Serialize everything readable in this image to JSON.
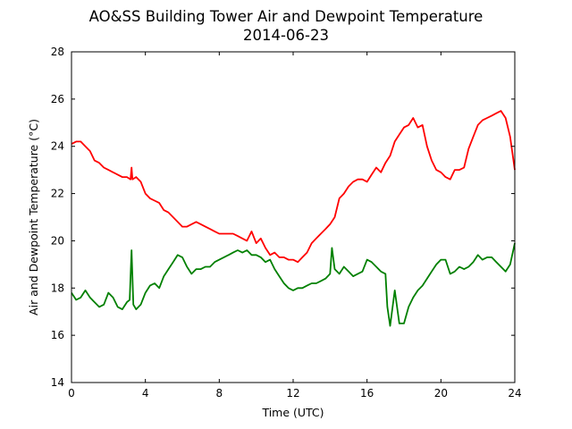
{
  "chart_data": {
    "type": "line",
    "title": "AO&SS Building Tower Air and Dewpoint Temperature",
    "subtitle": "2014-06-23",
    "xlabel": "Time (UTC)",
    "ylabel": "Air and Dewpoint Temperature (°C)",
    "xlim": [
      0,
      24
    ],
    "ylim": [
      14,
      28
    ],
    "xticks": [
      0,
      4,
      8,
      12,
      16,
      20,
      24
    ],
    "yticks": [
      14,
      16,
      18,
      20,
      22,
      24,
      26,
      28
    ],
    "grid": false,
    "legend": "none",
    "series": [
      {
        "color": "#ff0000",
        "x": [
          0,
          0.25,
          0.5,
          0.75,
          1.0,
          1.25,
          1.5,
          1.75,
          2.0,
          2.25,
          2.5,
          2.75,
          3.0,
          3.2,
          3.25,
          3.3,
          3.5,
          3.75,
          4.0,
          4.25,
          4.5,
          4.75,
          5.0,
          5.25,
          5.5,
          5.75,
          6.0,
          6.25,
          6.5,
          6.75,
          7.0,
          7.25,
          7.5,
          7.75,
          8.0,
          8.25,
          8.5,
          8.75,
          9.0,
          9.25,
          9.5,
          9.75,
          10.0,
          10.25,
          10.5,
          10.75,
          11.0,
          11.25,
          11.5,
          11.75,
          12.0,
          12.25,
          12.5,
          12.75,
          13.0,
          13.25,
          13.5,
          13.75,
          14.0,
          14.25,
          14.5,
          14.75,
          15.0,
          15.25,
          15.5,
          15.75,
          16.0,
          16.25,
          16.5,
          16.75,
          17.0,
          17.25,
          17.5,
          17.75,
          18.0,
          18.25,
          18.5,
          18.75,
          19.0,
          19.25,
          19.5,
          19.75,
          20.0,
          20.25,
          20.5,
          20.75,
          21.0,
          21.25,
          21.5,
          21.75,
          22.0,
          22.25,
          22.5,
          22.75,
          23.0,
          23.25,
          23.5,
          23.75,
          24.0
        ],
        "values": [
          24.1,
          24.2,
          24.2,
          24.0,
          23.8,
          23.4,
          23.3,
          23.1,
          23.0,
          22.9,
          22.8,
          22.7,
          22.7,
          22.6,
          23.1,
          22.6,
          22.7,
          22.5,
          22.0,
          21.8,
          21.7,
          21.6,
          21.3,
          21.2,
          21.0,
          20.8,
          20.6,
          20.6,
          20.7,
          20.8,
          20.7,
          20.6,
          20.5,
          20.4,
          20.3,
          20.3,
          20.3,
          20.3,
          20.2,
          20.1,
          20.0,
          20.4,
          19.9,
          20.1,
          19.7,
          19.4,
          19.5,
          19.3,
          19.3,
          19.2,
          19.2,
          19.1,
          19.3,
          19.5,
          19.9,
          20.1,
          20.3,
          20.5,
          20.7,
          21.0,
          21.8,
          22.0,
          22.3,
          22.5,
          22.6,
          22.6,
          22.5,
          22.8,
          23.1,
          22.9,
          23.3,
          23.6,
          24.2,
          24.5,
          24.8,
          24.9,
          25.2,
          24.8,
          24.9,
          24.0,
          23.4,
          23.0,
          22.9,
          22.7,
          22.6,
          23.0,
          23.0,
          23.1,
          23.9,
          24.4,
          24.9,
          25.1,
          25.2,
          25.3,
          25.4,
          25.5,
          25.2,
          24.4,
          23.0
        ]
      },
      {
        "color": "#008000",
        "x": [
          0,
          0.25,
          0.5,
          0.75,
          1.0,
          1.25,
          1.5,
          1.75,
          2.0,
          2.25,
          2.5,
          2.75,
          3.0,
          3.15,
          3.25,
          3.35,
          3.5,
          3.75,
          4.0,
          4.25,
          4.5,
          4.75,
          5.0,
          5.25,
          5.5,
          5.75,
          6.0,
          6.25,
          6.5,
          6.75,
          7.0,
          7.25,
          7.5,
          7.75,
          8.0,
          8.25,
          8.5,
          8.75,
          9.0,
          9.25,
          9.5,
          9.75,
          10.0,
          10.25,
          10.5,
          10.75,
          11.0,
          11.25,
          11.5,
          11.75,
          12.0,
          12.25,
          12.5,
          12.75,
          13.0,
          13.25,
          13.5,
          13.75,
          14.0,
          14.1,
          14.25,
          14.5,
          14.75,
          15.0,
          15.25,
          15.5,
          15.75,
          16.0,
          16.25,
          16.5,
          16.75,
          17.0,
          17.1,
          17.25,
          17.5,
          17.75,
          18.0,
          18.25,
          18.5,
          18.75,
          19.0,
          19.25,
          19.5,
          19.75,
          20.0,
          20.25,
          20.5,
          20.75,
          21.0,
          21.25,
          21.5,
          21.75,
          22.0,
          22.25,
          22.5,
          22.75,
          23.0,
          23.25,
          23.5,
          23.75,
          24.0
        ],
        "values": [
          17.8,
          17.5,
          17.6,
          17.9,
          17.6,
          17.4,
          17.2,
          17.3,
          17.8,
          17.6,
          17.2,
          17.1,
          17.4,
          17.5,
          19.6,
          17.3,
          17.1,
          17.3,
          17.8,
          18.1,
          18.2,
          18.0,
          18.5,
          18.8,
          19.1,
          19.4,
          19.3,
          18.9,
          18.6,
          18.8,
          18.8,
          18.9,
          18.9,
          19.1,
          19.2,
          19.3,
          19.4,
          19.5,
          19.6,
          19.5,
          19.6,
          19.4,
          19.4,
          19.3,
          19.1,
          19.2,
          18.8,
          18.5,
          18.2,
          18.0,
          17.9,
          18.0,
          18.0,
          18.1,
          18.2,
          18.2,
          18.3,
          18.4,
          18.6,
          19.7,
          18.8,
          18.6,
          18.9,
          18.7,
          18.5,
          18.6,
          18.7,
          19.2,
          19.1,
          18.9,
          18.7,
          18.6,
          17.2,
          16.4,
          17.9,
          16.5,
          16.5,
          17.2,
          17.6,
          17.9,
          18.1,
          18.4,
          18.7,
          19.0,
          19.2,
          19.2,
          18.6,
          18.7,
          18.9,
          18.8,
          18.9,
          19.1,
          19.4,
          19.2,
          19.3,
          19.3,
          19.1,
          18.9,
          18.7,
          19.0,
          19.9
        ]
      }
    ]
  }
}
